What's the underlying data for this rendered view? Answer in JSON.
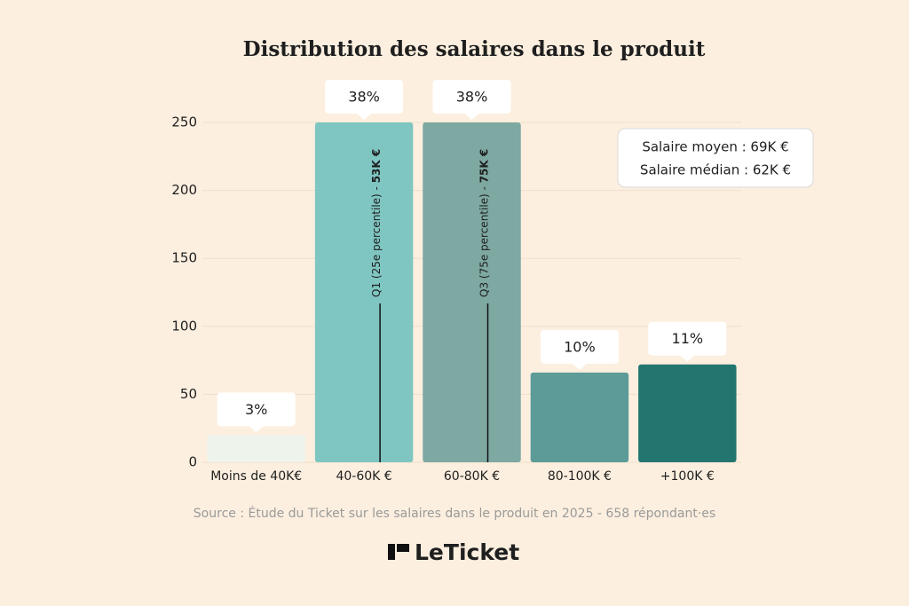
{
  "chart_data": {
    "type": "bar",
    "title": "Distribution des salaires dans le produit",
    "categories": [
      "Moins de 40K€",
      "40-60K €",
      "60-80K €",
      "80-100K €",
      "+100K €"
    ],
    "values": [
      20,
      250,
      250,
      66,
      72
    ],
    "share_labels": [
      "3%",
      "38%",
      "38%",
      "10%",
      "11%"
    ],
    "colors": [
      "#eef4ec",
      "#7fc6c2",
      "#7ea8a2",
      "#5c9b97",
      "#237670"
    ],
    "ylim": [
      0,
      250
    ],
    "yticks": [
      0,
      50,
      100,
      150,
      200,
      250
    ],
    "grid": true,
    "quartiles": [
      {
        "category": 1,
        "label": "Q1 (25e percentile) - ",
        "value": "53K €"
      },
      {
        "category": 2,
        "label": "Q3 (75e percentile) - ",
        "value": "75K €"
      }
    ],
    "info": [
      "Salaire moyen : 69K €",
      "Salaire médian : 62K €"
    ],
    "source": "Source : Étude du Ticket sur les salaires dans le produit en 2025 - 658 répondant·es",
    "brand": "LeTicket"
  }
}
